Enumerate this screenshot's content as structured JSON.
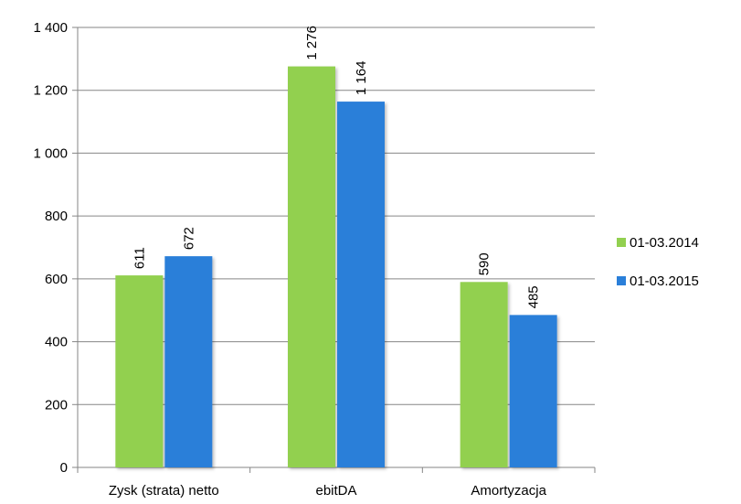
{
  "chart_data": {
    "type": "bar",
    "categories": [
      "Zysk (strata) netto",
      "ebitDA",
      "Amortyzacja"
    ],
    "series": [
      {
        "name": "01-03.2014",
        "color": "#92D050",
        "values": [
          611,
          1276,
          590
        ],
        "labels": [
          "611",
          "1 276",
          "590"
        ]
      },
      {
        "name": "01-03.2015",
        "color": "#2A7FD9",
        "values": [
          672,
          1164,
          485
        ],
        "labels": [
          "672",
          "1 164",
          "485"
        ]
      }
    ],
    "yticks": [
      0,
      200,
      400,
      600,
      800,
      1000,
      1200,
      1400
    ],
    "ytick_labels": [
      "0",
      "200",
      "400",
      "600",
      "800",
      "1 000",
      "1 200",
      "1 400"
    ],
    "ylim": [
      0,
      1400
    ],
    "grid": true,
    "legend_position": "right",
    "title": "",
    "xlabel": "",
    "ylabel": ""
  }
}
